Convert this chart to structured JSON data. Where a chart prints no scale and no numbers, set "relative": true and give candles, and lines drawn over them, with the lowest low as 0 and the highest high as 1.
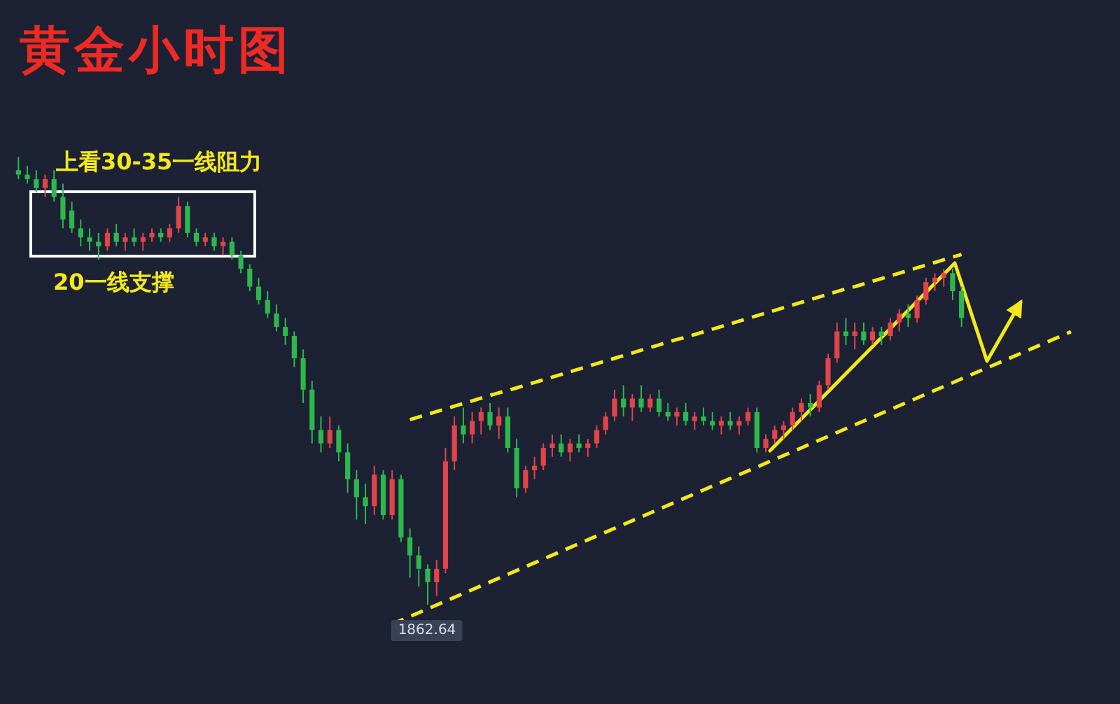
{
  "chart_data": {
    "type": "candlestick",
    "title": "黄金小时图",
    "relative": true,
    "series": [
      {
        "type": "line",
        "color": "#f2e81c",
        "line_style": "dashed",
        "values": [
          null,
          null,
          null,
          null,
          null,
          null,
          null,
          null,
          null,
          null,
          null,
          null,
          null,
          null,
          null,
          null,
          null,
          null,
          null,
          null,
          null,
          null,
          null,
          null,
          null,
          null,
          null,
          null,
          null,
          null,
          null,
          null,
          null,
          null,
          null,
          null,
          null,
          null,
          null,
          null,
          null,
          null,
          null,
          null,
          0.413,
          0.419,
          0.425,
          0.431,
          0.437,
          0.443,
          0.449,
          0.455,
          0.461,
          0.467,
          0.473,
          0.478,
          0.484,
          0.49,
          0.496,
          0.502,
          0.508,
          0.514,
          0.52,
          0.526,
          0.532,
          0.538,
          0.544,
          0.55,
          0.556,
          0.562,
          0.568,
          0.574,
          0.58,
          0.586,
          0.592,
          0.597,
          0.603,
          0.609,
          0.615,
          0.621,
          0.627,
          0.633,
          0.639,
          0.645,
          0.651,
          0.657,
          0.663,
          0.669,
          0.675,
          0.681,
          0.687,
          0.693,
          0.699,
          0.705,
          0.71,
          0.716,
          0.722,
          0.728,
          0.734,
          0.74,
          0.746,
          0.752,
          0.758,
          0.764,
          0.77,
          0.776,
          0.782
        ]
      }
    ],
    "annotations": [
      "上看30-35一线阻力",
      "20一线支撑",
      "1862.64"
    ],
    "categories": [
      null,
      null,
      null,
      null,
      null,
      null,
      null,
      null,
      null,
      null,
      null,
      null,
      null,
      null,
      null,
      null,
      null,
      null,
      null,
      null,
      null,
      null,
      null,
      null,
      null,
      null,
      null,
      null,
      null,
      null,
      null,
      null,
      null,
      null,
      null,
      null,
      null,
      null,
      null,
      null,
      null,
      null,
      null,
      null,
      null,
      null,
      null,
      null,
      null,
      null,
      null,
      null,
      null,
      null,
      null,
      null,
      null,
      null,
      null,
      null,
      null,
      null,
      null,
      null,
      null,
      null,
      null,
      null,
      null,
      null,
      null,
      null,
      null,
      null,
      null,
      null,
      null,
      null,
      null,
      null,
      null,
      null,
      null,
      null,
      null,
      null,
      null,
      null,
      null,
      null,
      null,
      null,
      null,
      null,
      null,
      null,
      null,
      null,
      null,
      null,
      null,
      null,
      null,
      null,
      null,
      null,
      null
    ],
    "ohlc": [
      [
        0.97,
        1.0,
        0.95,
        0.96
      ],
      [
        0.96,
        0.98,
        0.94,
        0.95
      ],
      [
        0.95,
        0.97,
        0.92,
        0.93
      ],
      [
        0.93,
        0.96,
        0.91,
        0.95
      ],
      [
        0.95,
        0.97,
        0.9,
        0.91
      ],
      [
        0.91,
        0.94,
        0.84,
        0.86
      ],
      [
        0.88,
        0.9,
        0.83,
        0.84
      ],
      [
        0.84,
        0.86,
        0.8,
        0.82
      ],
      [
        0.82,
        0.84,
        0.79,
        0.81
      ],
      [
        0.81,
        0.83,
        0.77,
        0.8
      ],
      [
        0.8,
        0.84,
        0.79,
        0.83
      ],
      [
        0.83,
        0.85,
        0.8,
        0.81
      ],
      [
        0.81,
        0.83,
        0.79,
        0.82
      ],
      [
        0.82,
        0.84,
        0.8,
        0.81
      ],
      [
        0.81,
        0.83,
        0.79,
        0.82
      ],
      [
        0.82,
        0.84,
        0.81,
        0.83
      ],
      [
        0.83,
        0.84,
        0.81,
        0.82
      ],
      [
        0.82,
        0.85,
        0.81,
        0.84
      ],
      [
        0.84,
        0.91,
        0.83,
        0.89
      ],
      [
        0.89,
        0.9,
        0.82,
        0.83
      ],
      [
        0.83,
        0.84,
        0.8,
        0.81
      ],
      [
        0.81,
        0.83,
        0.8,
        0.82
      ],
      [
        0.82,
        0.83,
        0.79,
        0.8
      ],
      [
        0.8,
        0.82,
        0.78,
        0.81
      ],
      [
        0.81,
        0.82,
        0.77,
        0.78
      ],
      [
        0.78,
        0.79,
        0.74,
        0.75
      ],
      [
        0.75,
        0.76,
        0.7,
        0.71
      ],
      [
        0.71,
        0.73,
        0.67,
        0.68
      ],
      [
        0.68,
        0.7,
        0.64,
        0.65
      ],
      [
        0.65,
        0.67,
        0.61,
        0.62
      ],
      [
        0.62,
        0.64,
        0.58,
        0.6
      ],
      [
        0.6,
        0.61,
        0.53,
        0.55
      ],
      [
        0.55,
        0.57,
        0.45,
        0.48
      ],
      [
        0.48,
        0.5,
        0.36,
        0.39
      ],
      [
        0.39,
        0.42,
        0.34,
        0.36
      ],
      [
        0.36,
        0.42,
        0.35,
        0.39
      ],
      [
        0.39,
        0.4,
        0.32,
        0.34
      ],
      [
        0.34,
        0.36,
        0.25,
        0.28
      ],
      [
        0.28,
        0.3,
        0.19,
        0.24
      ],
      [
        0.24,
        0.27,
        0.18,
        0.22
      ],
      [
        0.22,
        0.31,
        0.2,
        0.29
      ],
      [
        0.29,
        0.3,
        0.19,
        0.2
      ],
      [
        0.2,
        0.3,
        0.19,
        0.28
      ],
      [
        0.28,
        0.29,
        0.14,
        0.15
      ],
      [
        0.15,
        0.17,
        0.06,
        0.11
      ],
      [
        0.11,
        0.13,
        0.04,
        0.08
      ],
      [
        0.08,
        0.09,
        0.0,
        0.05
      ],
      [
        0.05,
        0.1,
        0.02,
        0.08
      ],
      [
        0.08,
        0.35,
        0.07,
        0.32
      ],
      [
        0.32,
        0.42,
        0.3,
        0.4
      ],
      [
        0.4,
        0.44,
        0.36,
        0.38
      ],
      [
        0.38,
        0.43,
        0.36,
        0.41
      ],
      [
        0.41,
        0.44,
        0.38,
        0.43
      ],
      [
        0.43,
        0.45,
        0.39,
        0.4
      ],
      [
        0.4,
        0.44,
        0.37,
        0.42
      ],
      [
        0.42,
        0.44,
        0.34,
        0.35
      ],
      [
        0.35,
        0.37,
        0.24,
        0.26
      ],
      [
        0.26,
        0.31,
        0.25,
        0.3
      ],
      [
        0.3,
        0.33,
        0.28,
        0.31
      ],
      [
        0.31,
        0.36,
        0.3,
        0.35
      ],
      [
        0.35,
        0.38,
        0.33,
        0.36
      ],
      [
        0.36,
        0.38,
        0.33,
        0.34
      ],
      [
        0.34,
        0.37,
        0.32,
        0.36
      ],
      [
        0.36,
        0.38,
        0.34,
        0.35
      ],
      [
        0.35,
        0.37,
        0.33,
        0.36
      ],
      [
        0.36,
        0.4,
        0.35,
        0.39
      ],
      [
        0.39,
        0.43,
        0.38,
        0.42
      ],
      [
        0.42,
        0.48,
        0.41,
        0.46
      ],
      [
        0.46,
        0.49,
        0.42,
        0.44
      ],
      [
        0.44,
        0.47,
        0.41,
        0.46
      ],
      [
        0.46,
        0.49,
        0.43,
        0.44
      ],
      [
        0.44,
        0.47,
        0.43,
        0.46
      ],
      [
        0.46,
        0.48,
        0.42,
        0.43
      ],
      [
        0.43,
        0.45,
        0.41,
        0.42
      ],
      [
        0.42,
        0.44,
        0.4,
        0.43
      ],
      [
        0.43,
        0.45,
        0.4,
        0.41
      ],
      [
        0.41,
        0.43,
        0.39,
        0.42
      ],
      [
        0.42,
        0.44,
        0.4,
        0.41
      ],
      [
        0.41,
        0.43,
        0.39,
        0.4
      ],
      [
        0.4,
        0.42,
        0.38,
        0.41
      ],
      [
        0.41,
        0.43,
        0.39,
        0.4
      ],
      [
        0.4,
        0.42,
        0.38,
        0.41
      ],
      [
        0.41,
        0.44,
        0.4,
        0.43
      ],
      [
        0.43,
        0.44,
        0.34,
        0.35
      ],
      [
        0.35,
        0.38,
        0.34,
        0.37
      ],
      [
        0.37,
        0.4,
        0.36,
        0.39
      ],
      [
        0.39,
        0.41,
        0.37,
        0.4
      ],
      [
        0.4,
        0.44,
        0.39,
        0.43
      ],
      [
        0.43,
        0.46,
        0.41,
        0.45
      ],
      [
        0.45,
        0.47,
        0.42,
        0.44
      ],
      [
        0.44,
        0.5,
        0.43,
        0.49
      ],
      [
        0.49,
        0.56,
        0.48,
        0.55
      ],
      [
        0.55,
        0.63,
        0.54,
        0.61
      ],
      [
        0.61,
        0.64,
        0.58,
        0.6
      ],
      [
        0.6,
        0.63,
        0.57,
        0.61
      ],
      [
        0.61,
        0.63,
        0.58,
        0.59
      ],
      [
        0.59,
        0.62,
        0.58,
        0.61
      ],
      [
        0.61,
        0.62,
        0.58,
        0.6
      ],
      [
        0.6,
        0.64,
        0.59,
        0.63
      ],
      [
        0.63,
        0.66,
        0.61,
        0.65
      ],
      [
        0.65,
        0.67,
        0.62,
        0.64
      ],
      [
        0.64,
        0.69,
        0.63,
        0.68
      ],
      [
        0.68,
        0.73,
        0.67,
        0.72
      ],
      [
        0.72,
        0.74,
        0.7,
        0.73
      ],
      [
        0.73,
        0.75,
        0.71,
        0.74
      ],
      [
        0.74,
        0.75,
        0.68,
        0.7
      ],
      [
        0.7,
        0.71,
        0.62,
        0.64
      ]
    ],
    "colors": [
      "#2db84d",
      "#2db84d",
      "#2db84d",
      "#e0454a",
      "#2db84d",
      "#2db84d",
      "#2db84d",
      "#2db84d",
      "#2db84d",
      "#2db84d",
      "#e0454a",
      "#2db84d",
      "#e0454a",
      "#2db84d",
      "#e0454a",
      "#e0454a",
      "#2db84d",
      "#e0454a",
      "#e0454a",
      "#2db84d",
      "#2db84d",
      "#e0454a",
      "#2db84d",
      "#e0454a",
      "#2db84d",
      "#2db84d",
      "#2db84d",
      "#2db84d",
      "#2db84d",
      "#2db84d",
      "#2db84d",
      "#2db84d",
      "#2db84d",
      "#2db84d",
      "#2db84d",
      "#e0454a",
      "#2db84d",
      "#2db84d",
      "#2db84d",
      "#2db84d",
      "#e0454a",
      "#2db84d",
      "#e0454a",
      "#2db84d",
      "#2db84d",
      "#2db84d",
      "#2db84d",
      "#e0454a",
      "#e0454a",
      "#e0454a",
      "#2db84d",
      "#e0454a",
      "#e0454a",
      "#2db84d",
      "#e0454a",
      "#2db84d",
      "#2db84d",
      "#e0454a",
      "#e0454a",
      "#e0454a",
      "#e0454a",
      "#2db84d",
      "#e0454a",
      "#2db84d",
      "#e0454a",
      "#e0454a",
      "#e0454a",
      "#e0454a",
      "#2db84d",
      "#e0454a",
      "#2db84d",
      "#e0454a",
      "#2db84d",
      "#2db84d",
      "#e0454a",
      "#2db84d",
      "#e0454a",
      "#2db84d",
      "#2db84d",
      "#e0454a",
      "#2db84d",
      "#e0454a",
      "#e0454a",
      "#2db84d",
      "#e0454a",
      "#e0454a",
      "#e0454a",
      "#e0454a",
      "#e0454a",
      "#2db84d",
      "#e0454a",
      "#e0454a",
      "#e0454a",
      "#2db84d",
      "#e0454a",
      "#2db84d",
      "#e0454a",
      "#2db84d",
      "#e0454a",
      "#e0454a",
      "#2db84d",
      "#e0454a",
      "#e0454a",
      "#e0454a",
      "#e0454a",
      "#2db84d",
      "#2db84d"
    ]
  }
}
